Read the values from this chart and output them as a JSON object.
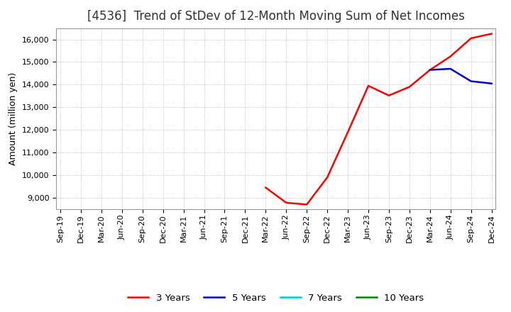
{
  "title": "[4536]  Trend of StDev of 12-Month Moving Sum of Net Incomes",
  "ylabel": "Amount (million yen)",
  "background_color": "#ffffff",
  "grid_color": "#b0b0b0",
  "series": {
    "3 Years": {
      "color": "#ff0000",
      "dates": [
        "Mar-22",
        "Jun-22",
        "Sep-22",
        "Dec-22",
        "Mar-23",
        "Jun-23",
        "Sep-23",
        "Dec-23",
        "Mar-24",
        "Jun-24",
        "Sep-24",
        "Dec-24"
      ],
      "values": [
        9450,
        8780,
        8700,
        9900,
        11900,
        13950,
        13520,
        13900,
        14650,
        15250,
        16050,
        16250
      ]
    },
    "5 Years": {
      "color": "#0000cc",
      "dates": [
        "Mar-24",
        "Jun-24",
        "Sep-24",
        "Dec-24"
      ],
      "values": [
        14650,
        14700,
        14150,
        14050
      ]
    },
    "7 Years": {
      "color": "#00cccc",
      "dates": [],
      "values": []
    },
    "10 Years": {
      "color": "#008800",
      "dates": [],
      "values": []
    }
  },
  "x_tick_labels": [
    "Sep-19",
    "Dec-19",
    "Mar-20",
    "Jun-20",
    "Sep-20",
    "Dec-20",
    "Mar-21",
    "Jun-21",
    "Sep-21",
    "Dec-21",
    "Mar-22",
    "Jun-22",
    "Sep-22",
    "Dec-22",
    "Mar-23",
    "Jun-23",
    "Sep-23",
    "Dec-23",
    "Mar-24",
    "Jun-24",
    "Sep-24",
    "Dec-24"
  ],
  "ylim_min": 8500,
  "ylim_max": 16500,
  "yticks": [
    9000,
    10000,
    11000,
    12000,
    13000,
    14000,
    15000,
    16000
  ],
  "title_fontsize": 12,
  "axis_label_fontsize": 9,
  "tick_fontsize": 8,
  "legend_fontsize": 9.5
}
